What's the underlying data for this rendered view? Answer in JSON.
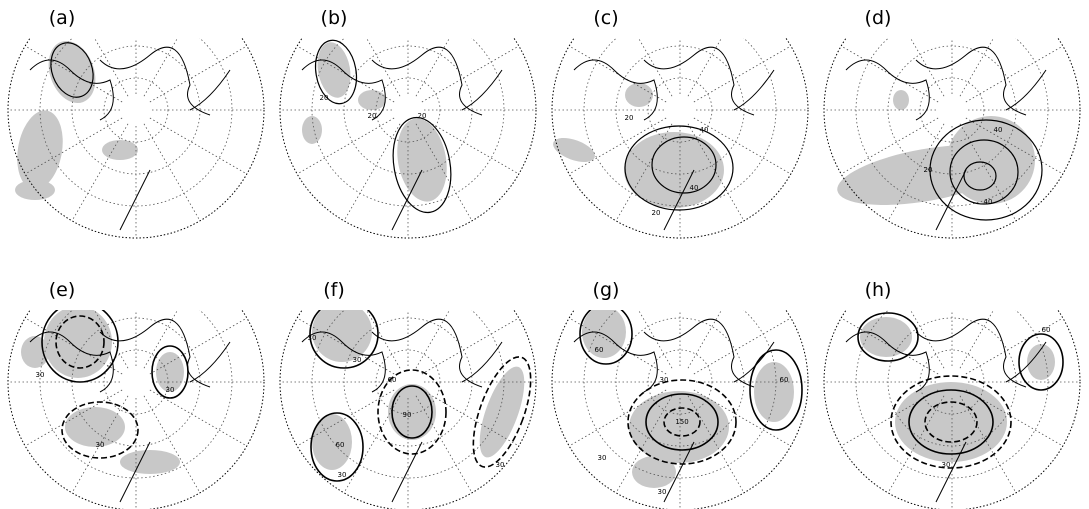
{
  "panels": [
    {
      "label": "(a)"
    },
    {
      "label": "(b)",
      "contour_labels": [
        "20",
        "20",
        "20"
      ]
    },
    {
      "label": "(c)",
      "contour_labels": [
        "20",
        "40",
        "40",
        "20"
      ]
    },
    {
      "label": "(d)",
      "contour_labels": [
        "40",
        "20",
        "40"
      ]
    },
    {
      "label": "(e)",
      "contour_labels": [
        "30",
        "30",
        "30"
      ]
    },
    {
      "label": "(f)",
      "contour_labels": [
        "30",
        "30",
        "60",
        "90",
        "60",
        "30",
        "30"
      ]
    },
    {
      "label": "(g)",
      "contour_labels": [
        "60",
        "30",
        "150",
        "60",
        "30",
        "30"
      ]
    },
    {
      "label": "(h)",
      "contour_labels": [
        "60",
        "30"
      ]
    }
  ]
}
